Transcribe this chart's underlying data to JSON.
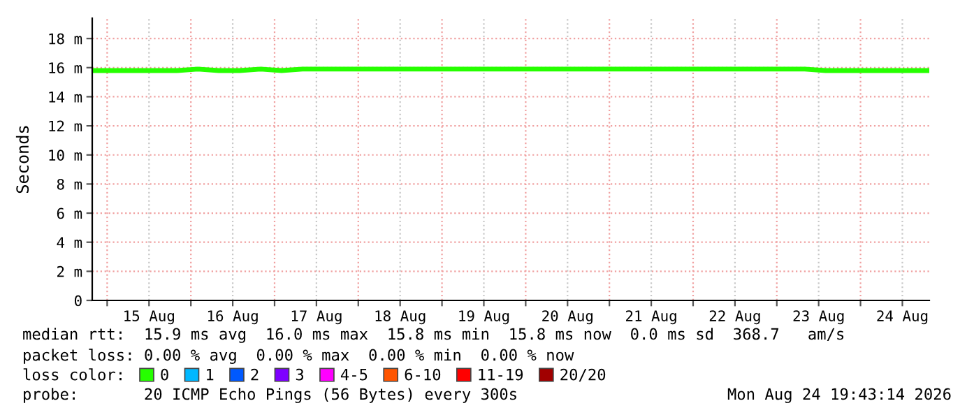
{
  "chart_data": {
    "type": "line",
    "ylabel": "Seconds",
    "x": [
      "2026-08-14T20:00",
      "2026-08-15T02:00",
      "2026-08-15T08:00",
      "2026-08-15T14:00",
      "2026-08-15T20:00",
      "2026-08-16T02:00",
      "2026-08-16T08:00",
      "2026-08-16T14:00",
      "2026-08-16T20:00",
      "2026-08-17T02:00",
      "2026-08-17T08:00",
      "2026-08-17T14:00",
      "2026-08-17T20:00",
      "2026-08-18T02:00",
      "2026-08-18T08:00",
      "2026-08-18T14:00",
      "2026-08-18T20:00",
      "2026-08-19T02:00",
      "2026-08-19T08:00",
      "2026-08-19T14:00",
      "2026-08-19T20:00",
      "2026-08-20T02:00",
      "2026-08-20T08:00",
      "2026-08-20T14:00",
      "2026-08-20T20:00",
      "2026-08-21T02:00",
      "2026-08-21T08:00",
      "2026-08-21T14:00",
      "2026-08-21T20:00",
      "2026-08-22T02:00",
      "2026-08-22T08:00",
      "2026-08-22T14:00",
      "2026-08-22T20:00",
      "2026-08-23T02:00",
      "2026-08-23T08:00",
      "2026-08-23T14:00",
      "2026-08-23T20:00",
      "2026-08-24T02:00",
      "2026-08-24T08:00",
      "2026-08-24T14:00",
      "2026-08-24T19:40"
    ],
    "series": [
      {
        "name": "0",
        "color": "#26ff00",
        "values": [
          15.8,
          15.8,
          15.8,
          15.8,
          15.8,
          15.9,
          15.8,
          15.8,
          15.9,
          15.8,
          15.9,
          15.9,
          15.9,
          15.9,
          15.9,
          15.9,
          15.9,
          15.9,
          15.9,
          15.9,
          15.9,
          15.9,
          15.9,
          15.9,
          15.9,
          15.9,
          15.9,
          15.9,
          15.9,
          15.9,
          15.9,
          15.9,
          15.9,
          15.9,
          15.9,
          15.8,
          15.8,
          15.8,
          15.8,
          15.8,
          15.8
        ]
      },
      {
        "name": "1",
        "color": "#00b8ff",
        "values": [
          null,
          null,
          null,
          null,
          null,
          null,
          null,
          null,
          null,
          null,
          null,
          null,
          null,
          null,
          null,
          null,
          null,
          null,
          null,
          null,
          null,
          null,
          null,
          null,
          null,
          null,
          null,
          null,
          null,
          null,
          null,
          null,
          null,
          null,
          null,
          null,
          null,
          null,
          null,
          null,
          null
        ]
      },
      {
        "name": "2",
        "color": "#0059ff",
        "values": [
          null,
          null,
          null,
          null,
          null,
          null,
          null,
          null,
          null,
          null,
          null,
          null,
          null,
          null,
          null,
          null,
          null,
          null,
          null,
          null,
          null,
          null,
          null,
          null,
          null,
          null,
          null,
          null,
          null,
          null,
          null,
          null,
          null,
          null,
          null,
          null,
          null,
          null,
          null,
          null,
          null
        ]
      },
      {
        "name": "3",
        "color": "#7e00ff",
        "values": [
          null,
          null,
          null,
          null,
          null,
          null,
          null,
          null,
          null,
          null,
          null,
          null,
          null,
          null,
          null,
          null,
          null,
          null,
          null,
          null,
          null,
          null,
          null,
          null,
          null,
          null,
          null,
          null,
          null,
          null,
          null,
          null,
          null,
          null,
          null,
          null,
          null,
          null,
          null,
          null,
          null
        ]
      },
      {
        "name": "4-5",
        "color": "#ff00ff",
        "values": [
          null,
          null,
          null,
          null,
          null,
          null,
          null,
          null,
          null,
          null,
          null,
          null,
          null,
          null,
          null,
          null,
          null,
          null,
          null,
          null,
          null,
          null,
          null,
          null,
          null,
          null,
          null,
          null,
          null,
          null,
          null,
          null,
          null,
          null,
          null,
          null,
          null,
          null,
          null,
          null,
          null
        ]
      },
      {
        "name": "6-10",
        "color": "#ff5500",
        "values": [
          null,
          null,
          null,
          null,
          null,
          null,
          null,
          null,
          null,
          null,
          null,
          null,
          null,
          null,
          null,
          null,
          null,
          null,
          null,
          null,
          null,
          null,
          null,
          null,
          null,
          null,
          null,
          null,
          null,
          null,
          null,
          null,
          null,
          null,
          null,
          null,
          null,
          null,
          null,
          null,
          null
        ]
      },
      {
        "name": "11-19",
        "color": "#ff0000",
        "values": [
          null,
          null,
          null,
          null,
          null,
          null,
          null,
          null,
          null,
          null,
          null,
          null,
          null,
          null,
          null,
          null,
          null,
          null,
          null,
          null,
          null,
          null,
          null,
          null,
          null,
          null,
          null,
          null,
          null,
          null,
          null,
          null,
          null,
          null,
          null,
          null,
          null,
          null,
          null,
          null,
          null
        ]
      },
      {
        "name": "20/20",
        "color": "#a10000",
        "values": [
          null,
          null,
          null,
          null,
          null,
          null,
          null,
          null,
          null,
          null,
          null,
          null,
          null,
          null,
          null,
          null,
          null,
          null,
          null,
          null,
          null,
          null,
          null,
          null,
          null,
          null,
          null,
          null,
          null,
          null,
          null,
          null,
          null,
          null,
          null,
          null,
          null,
          null,
          null,
          null,
          null
        ]
      }
    ],
    "legend_title": "loss color:",
    "legend": "bottom",
    "xlim": [
      "2026-08-14T19:43",
      "2026-08-24T19:43"
    ],
    "xticks": [
      {
        "value": "2026-08-15T00:00",
        "label": null
      },
      {
        "value": "2026-08-15T12:00",
        "label": "15 Aug"
      },
      {
        "value": "2026-08-16T00:00",
        "label": null
      },
      {
        "value": "2026-08-16T12:00",
        "label": "16 Aug"
      },
      {
        "value": "2026-08-17T00:00",
        "label": null
      },
      {
        "value": "2026-08-17T12:00",
        "label": "17 Aug"
      },
      {
        "value": "2026-08-18T00:00",
        "label": null
      },
      {
        "value": "2026-08-18T12:00",
        "label": "18 Aug"
      },
      {
        "value": "2026-08-19T00:00",
        "label": null
      },
      {
        "value": "2026-08-19T12:00",
        "label": "19 Aug"
      },
      {
        "value": "2026-08-20T00:00",
        "label": null
      },
      {
        "value": "2026-08-20T12:00",
        "label": "20 Aug"
      },
      {
        "value": "2026-08-21T00:00",
        "label": null
      },
      {
        "value": "2026-08-21T12:00",
        "label": "21 Aug"
      },
      {
        "value": "2026-08-22T00:00",
        "label": null
      },
      {
        "value": "2026-08-22T12:00",
        "label": "22 Aug"
      },
      {
        "value": "2026-08-23T00:00",
        "label": null
      },
      {
        "value": "2026-08-23T12:00",
        "label": "23 Aug"
      },
      {
        "value": "2026-08-24T00:00",
        "label": null
      },
      {
        "value": "2026-08-24T12:00",
        "label": "24 Aug"
      }
    ],
    "ylim": [
      0,
      19.4
    ],
    "yticks": [
      0,
      {
        "value": 2,
        "label": "2 m"
      },
      {
        "value": 4,
        "label": "4 m"
      },
      {
        "value": 6,
        "label": "6 m"
      },
      {
        "value": 8,
        "label": "8 m"
      },
      {
        "value": 10,
        "label": "10 m"
      },
      {
        "value": 12,
        "label": "12 m"
      },
      {
        "value": 14,
        "label": "14 m"
      },
      {
        "value": 16,
        "label": "16 m"
      },
      {
        "value": 18,
        "label": "18 m"
      }
    ],
    "grid": true,
    "line_style": "solid",
    "marker": "none",
    "annotations": [
      "median rtt:  15.9 ms avg  16.0 ms max  15.8 ms min  15.8 ms now  0.0 ms sd  368.7   am/s",
      "packet loss: 0.00 % avg  0.00 % max  0.00 % min  0.00 % now",
      "probe:       20 ICMP Echo Pings (56 Bytes) every 300s",
      "Mon Aug 24 19:43:14 2026"
    ]
  }
}
